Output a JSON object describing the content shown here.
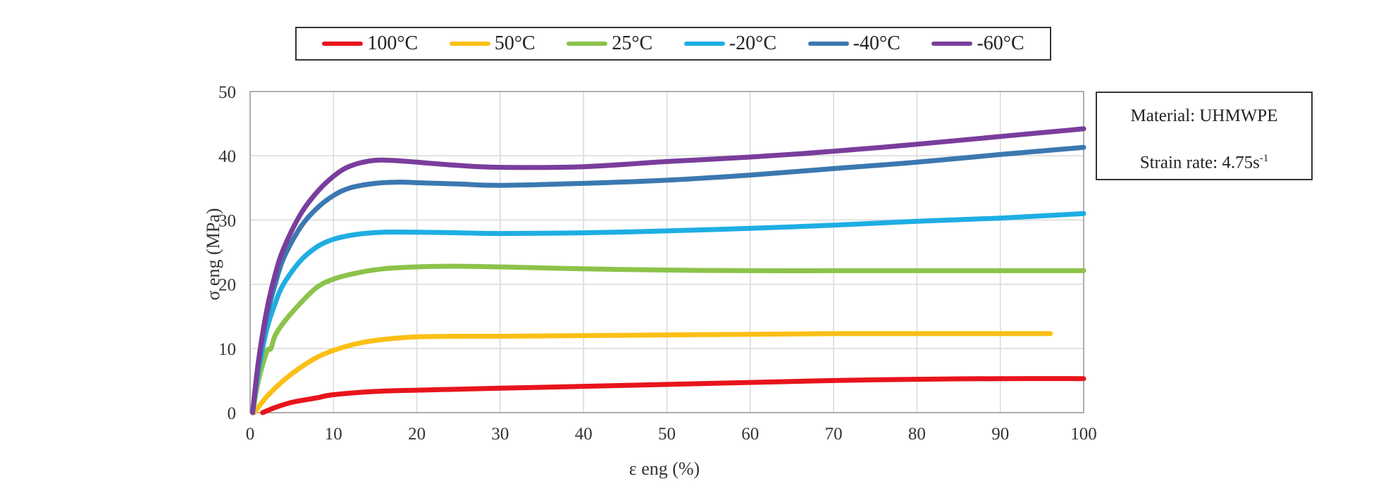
{
  "legend": {
    "items": [
      {
        "label": "100°C",
        "color": "#e8141b"
      },
      {
        "label": "50°C",
        "color": "#fbbf16"
      },
      {
        "label": "25°C",
        "color": "#8cc34a"
      },
      {
        "label": "-20°C",
        "color": "#1eaee3"
      },
      {
        "label": "-40°C",
        "color": "#3b78b0"
      },
      {
        "label": "-60°C",
        "color": "#7a3d9c"
      }
    ]
  },
  "info": {
    "material": "Material: UHMWPE",
    "strain_rate_prefix": "Strain rate: 4.75s",
    "strain_rate_exp": "-1"
  },
  "chart_data": {
    "type": "line",
    "title": "",
    "xlabel": "ε eng (%)",
    "ylabel": "σ eng (MPa)",
    "xlim": [
      0,
      100
    ],
    "ylim": [
      0,
      50
    ],
    "xticks": [
      0,
      10,
      20,
      30,
      40,
      50,
      60,
      70,
      80,
      90,
      100
    ],
    "yticks": [
      0,
      10,
      20,
      30,
      40,
      50
    ],
    "grid": true,
    "legend_position": "top",
    "series": [
      {
        "name": "100°C",
        "color": "#e8141b",
        "x": [
          1.5,
          3,
          5,
          8,
          10,
          15,
          20,
          30,
          40,
          50,
          60,
          70,
          80,
          90,
          100
        ],
        "y": [
          0,
          0.8,
          1.6,
          2.3,
          2.8,
          3.3,
          3.5,
          3.8,
          4.1,
          4.4,
          4.7,
          5.0,
          5.2,
          5.3,
          5.3
        ]
      },
      {
        "name": "50°C",
        "color": "#fbbf16",
        "x": [
          0.5,
          2,
          4,
          6,
          8,
          10,
          13,
          16,
          20,
          25,
          30,
          40,
          50,
          60,
          70,
          80,
          90,
          96
        ],
        "y": [
          0,
          2.5,
          5.0,
          7.0,
          8.6,
          9.7,
          10.8,
          11.4,
          11.8,
          11.9,
          11.9,
          12.0,
          12.1,
          12.2,
          12.3,
          12.3,
          12.3,
          12.3
        ]
      },
      {
        "name": "25°C",
        "color": "#8cc34a",
        "x": [
          0.3,
          1,
          2,
          2.5,
          3,
          4,
          6,
          8,
          10,
          13,
          16,
          20,
          25,
          30,
          40,
          50,
          60,
          70,
          80,
          90,
          100
        ],
        "y": [
          0,
          5.0,
          9.5,
          10.0,
          12.0,
          14.0,
          17.0,
          19.5,
          20.8,
          21.8,
          22.4,
          22.7,
          22.8,
          22.7,
          22.4,
          22.2,
          22.1,
          22.1,
          22.1,
          22.1,
          22.1
        ]
      },
      {
        "name": "-20°C",
        "color": "#1eaee3",
        "x": [
          0.3,
          1,
          2,
          3,
          4,
          6,
          8,
          10,
          13,
          16,
          20,
          25,
          30,
          40,
          50,
          60,
          70,
          80,
          90,
          100
        ],
        "y": [
          0,
          6.5,
          13.0,
          17.0,
          20.0,
          23.6,
          25.8,
          27.0,
          27.8,
          28.1,
          28.1,
          28.0,
          27.9,
          28.0,
          28.3,
          28.7,
          29.2,
          29.8,
          30.3,
          31.0
        ]
      },
      {
        "name": "-40°C",
        "color": "#3b78b0",
        "x": [
          0.3,
          1,
          2,
          3,
          4,
          6,
          8,
          10,
          12,
          15,
          18,
          20,
          25,
          30,
          40,
          50,
          60,
          70,
          80,
          90,
          100
        ],
        "y": [
          0,
          7.5,
          15.0,
          20.0,
          24.0,
          28.8,
          31.8,
          33.8,
          35.0,
          35.7,
          35.9,
          35.8,
          35.6,
          35.4,
          35.7,
          36.2,
          37.0,
          38.0,
          39.0,
          40.2,
          41.3
        ]
      },
      {
        "name": "-60°C",
        "color": "#7a3d9c",
        "x": [
          0.3,
          1,
          2,
          3,
          4,
          6,
          8,
          10,
          12,
          15,
          18,
          20,
          25,
          30,
          40,
          50,
          60,
          70,
          80,
          90,
          100
        ],
        "y": [
          0,
          8.0,
          16.0,
          21.5,
          25.5,
          30.8,
          34.3,
          36.8,
          38.4,
          39.3,
          39.2,
          39.0,
          38.5,
          38.2,
          38.3,
          39.1,
          39.8,
          40.7,
          41.8,
          43.0,
          44.2
        ]
      }
    ]
  }
}
